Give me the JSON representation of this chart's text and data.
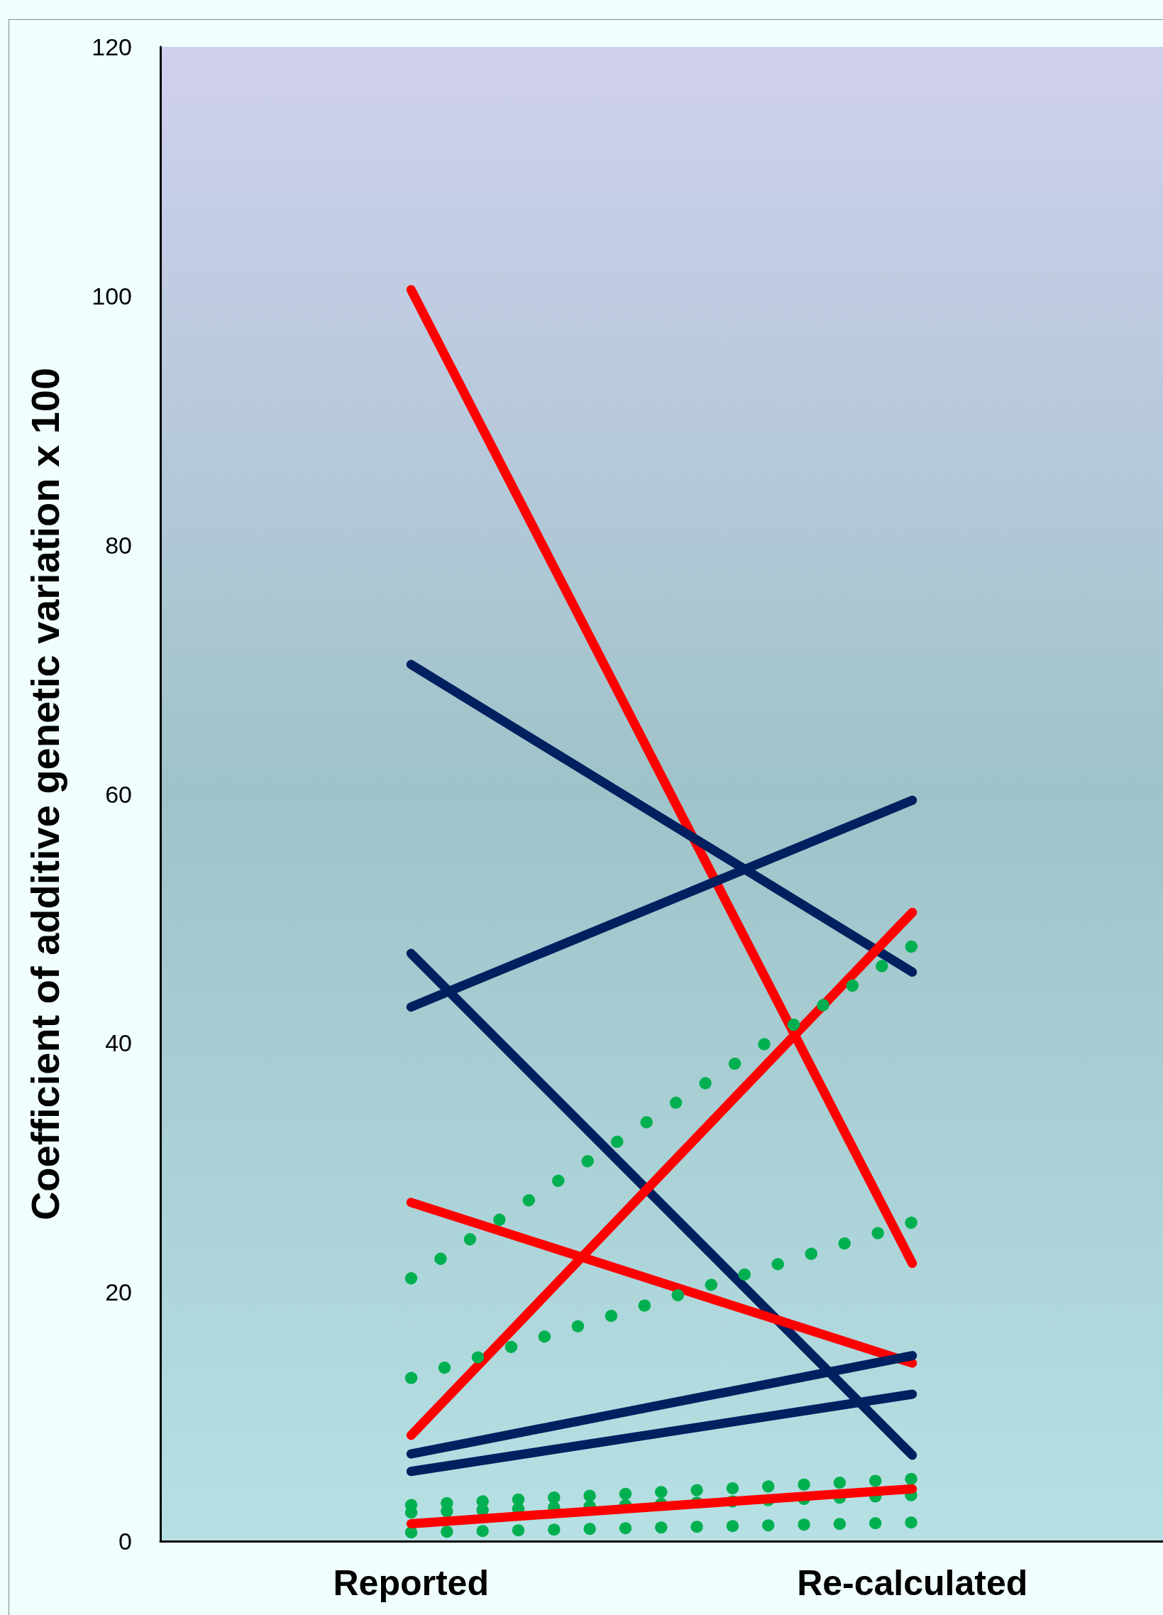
{
  "chart_data": {
    "type": "line",
    "ylabel": "Coefficient of additive genetic variation x 100",
    "categories": [
      "Reported",
      "Re-calculated"
    ],
    "ylim": [
      0,
      120
    ],
    "yticks": [
      0,
      20,
      40,
      60,
      80,
      100,
      120
    ],
    "grid": false,
    "marker": "none",
    "series": [
      {
        "color": "#ff0000",
        "line_style": "solid",
        "values": [
          100.5,
          22.3
        ]
      },
      {
        "color": "#002060",
        "line_style": "solid",
        "values": [
          70.4,
          45.7
        ]
      },
      {
        "color": "#002060",
        "line_style": "solid",
        "values": [
          42.9,
          59.5
        ]
      },
      {
        "color": "#002060",
        "line_style": "solid",
        "values": [
          47.2,
          6.9
        ]
      },
      {
        "color": "#ff0000",
        "line_style": "solid",
        "values": [
          27.2,
          14.3
        ]
      },
      {
        "color": "#ff0000",
        "line_style": "solid",
        "values": [
          8.5,
          50.5
        ]
      },
      {
        "color": "#00b050",
        "line_style": "dotted",
        "values": [
          21.1,
          47.8
        ]
      },
      {
        "color": "#00b050",
        "line_style": "dotted",
        "values": [
          13.1,
          25.6
        ]
      },
      {
        "color": "#002060",
        "line_style": "solid",
        "values": [
          7.0,
          14.9
        ]
      },
      {
        "color": "#002060",
        "line_style": "solid",
        "values": [
          5.6,
          11.8
        ]
      },
      {
        "color": "#00b050",
        "line_style": "dotted",
        "values": [
          2.9,
          5.0
        ]
      },
      {
        "color": "#00b050",
        "line_style": "dotted",
        "values": [
          2.3,
          3.7
        ]
      },
      {
        "color": "#00b050",
        "line_style": "dotted",
        "values": [
          0.7,
          1.5
        ]
      },
      {
        "color": "#ff0000",
        "line_style": "solid",
        "values": [
          1.4,
          4.2
        ]
      }
    ]
  }
}
